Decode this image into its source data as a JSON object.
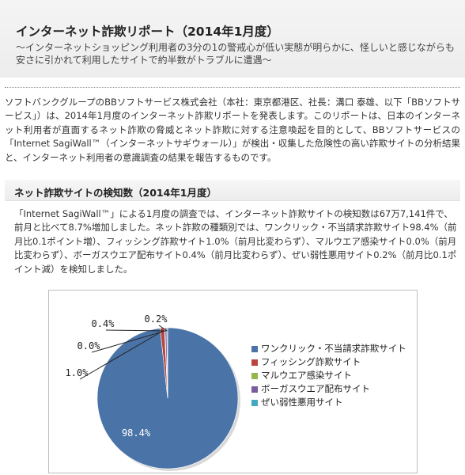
{
  "header": {
    "title": "インターネット詐欺リポート（2014年1月度）",
    "subtitle": "～インターネットショッピング利用者の3分の1の警戒心が低い実態が明らかに、怪しいと感じながらも安さに引かれて利用したサイトで約半数がトラブルに遭遇～"
  },
  "intro": "ソフトバンクグループのBBソフトサービス株式会社（本社：東京都港区、社長：溝口 泰雄、以下「BBソフトサービス」）は、2014年1月度のインターネット詐欺リポートを発表します。このリポートは、日本のインターネット利用者が直面するネット詐欺の脅威とネット詐欺に対する注意喚起を目的として、BBソフトサービスの「Internet SagiWall™（インターネットサギウォール）」が検出・収集した危険性の高い詐欺サイトの分析結果と、インターネット利用者の意識調査の結果を報告するものです。",
  "section": {
    "title": "ネット詐欺サイトの検知数（2014年1月度）",
    "body": "「Internet SagiWall™」による1月度の調査では、インターネット詐欺サイトの検知数は67万7,141件で、前月と比べて8.7%増加しました。ネット詐欺の種類別では、ワンクリック・不当請求詐欺サイト98.4%（前月比0.1ポイント増）、フィッシング詐欺サイト1.0%（前月比変わらず）、マルウエア感染サイト0.0%（前月比変わらず）、ボーガスウエア配布サイト0.4%（前月比変わらず）、ぜい弱性悪用サイト0.2%（前月比0.1ポイント減）を検知しました。"
  },
  "chart_data": {
    "type": "pie",
    "categories": [
      "ワンクリック・不当請求詐欺サイト",
      "フィッシング詐欺サイト",
      "マルウエア感染サイト",
      "ボーガスウエア配布サイト",
      "ぜい弱性悪用サイト"
    ],
    "values": [
      98.4,
      1.0,
      0.0,
      0.4,
      0.2
    ],
    "labels": [
      "98.4%",
      "1.0%",
      "0.0%",
      "0.4%",
      "0.2%"
    ],
    "colors": [
      "#4a73a7",
      "#b8463f",
      "#94b74a",
      "#7a5aa0",
      "#45a8c2"
    ],
    "legend_position": "right"
  }
}
